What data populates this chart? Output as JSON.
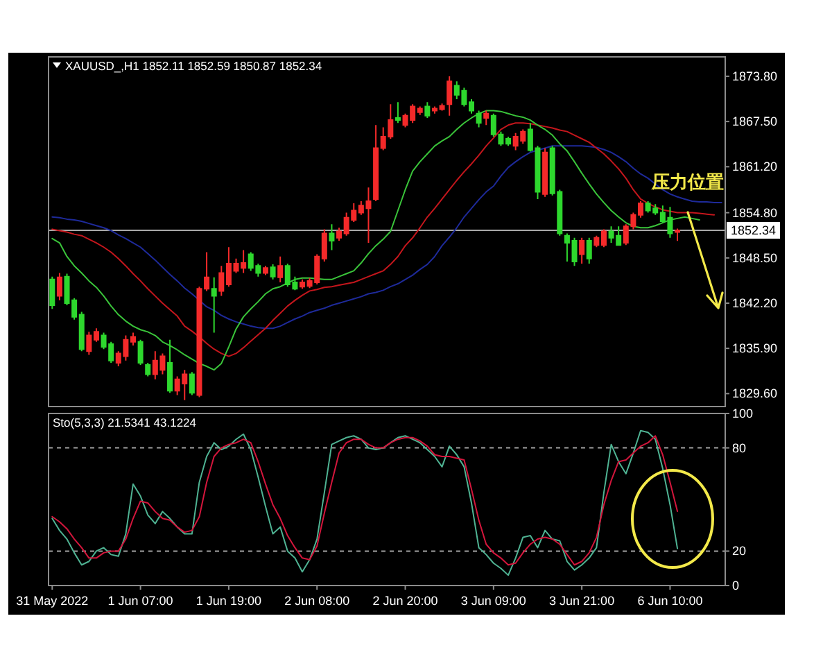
{
  "chart_data": [
    {
      "type": "candlestick",
      "title": "XAUUSD_,H1 1852.11 1852.59 1850.87 1852.34",
      "categories": [
        null,
        null,
        null,
        null,
        null,
        null,
        null,
        null,
        null,
        null,
        null,
        null,
        null,
        null,
        null,
        null,
        null,
        null,
        null,
        null,
        null,
        null,
        null,
        null,
        null,
        null,
        null,
        null,
        null,
        null,
        null,
        null,
        null,
        null,
        null,
        null,
        null,
        null,
        null,
        null,
        null,
        null,
        null,
        null,
        null,
        null,
        null,
        null,
        null,
        null,
        null,
        null,
        null,
        null,
        null,
        null,
        null,
        null,
        null,
        null,
        null,
        null,
        null,
        null,
        null,
        null,
        null,
        null,
        null,
        null,
        null,
        null,
        null,
        null,
        null,
        null,
        null,
        null,
        null,
        null,
        null,
        null,
        null,
        null,
        null,
        null,
        null,
        null,
        null,
        null,
        null,
        null
      ],
      "ohlc": [
        [
          1845.5,
          1845.9,
          1841.4,
          1841.9
        ],
        [
          1843.2,
          1846.4,
          1842.6,
          1845.8
        ],
        [
          1845.9,
          1846.3,
          1841.9,
          1842.2
        ],
        [
          1842.6,
          1842.9,
          1839.9,
          1840.3
        ],
        [
          1840.6,
          1841.0,
          1835.5,
          1835.8
        ],
        [
          1835.5,
          1838.2,
          1835.0,
          1837.7
        ],
        [
          1837.1,
          1838.7,
          1836.8,
          1838.2
        ],
        [
          1837.7,
          1838.1,
          1835.8,
          1836.1
        ],
        [
          1836.5,
          1836.8,
          1833.9,
          1834.2
        ],
        [
          1833.9,
          1835.5,
          1833.4,
          1835.2
        ],
        [
          1834.8,
          1837.7,
          1834.2,
          1837.1
        ],
        [
          1836.8,
          1838.1,
          1836.3,
          1837.5
        ],
        [
          1836.8,
          1837.1,
          1833.6,
          1833.9
        ],
        [
          1833.6,
          1833.9,
          1832.0,
          1832.3
        ],
        [
          1832.3,
          1835.5,
          1831.6,
          1834.2
        ],
        [
          1832.9,
          1835.2,
          1832.3,
          1834.8
        ],
        [
          1833.9,
          1837.1,
          1829.7,
          1830.0
        ],
        [
          1830.0,
          1832.0,
          1829.4,
          1831.6
        ],
        [
          1831.0,
          1832.9,
          1828.7,
          1832.3
        ],
        [
          1832.3,
          1832.6,
          1829.4,
          1829.7
        ],
        [
          1829.4,
          1844.5,
          1829.1,
          1844.2
        ],
        [
          1844.2,
          1849.3,
          1843.9,
          1845.8
        ],
        [
          1844.2,
          1845.8,
          1838.1,
          1843.2
        ],
        [
          1843.9,
          1847.4,
          1843.2,
          1846.4
        ],
        [
          1844.8,
          1850.0,
          1844.5,
          1847.7
        ],
        [
          1846.7,
          1848.4,
          1846.4,
          1847.7
        ],
        [
          1847.1,
          1849.6,
          1846.4,
          1847.8
        ],
        [
          1849.0,
          1849.3,
          1846.7,
          1847.1
        ],
        [
          1847.4,
          1847.7,
          1845.9,
          1846.4
        ],
        [
          1846.4,
          1847.4,
          1846.1,
          1847.1
        ],
        [
          1847.2,
          1847.6,
          1845.5,
          1845.9
        ],
        [
          1845.8,
          1848.7,
          1845.1,
          1847.4
        ],
        [
          1847.4,
          1847.7,
          1844.5,
          1844.8
        ],
        [
          1845.1,
          1845.9,
          1844.0,
          1844.2
        ],
        [
          1844.5,
          1845.5,
          1844.2,
          1845.1
        ],
        [
          1844.6,
          1845.7,
          1844.3,
          1845.3
        ],
        [
          1845.1,
          1849.0,
          1844.8,
          1848.7
        ],
        [
          1848.4,
          1852.5,
          1848.0,
          1851.9
        ],
        [
          1851.9,
          1853.2,
          1849.6,
          1850.9
        ],
        [
          1851.3,
          1852.7,
          1850.9,
          1852.2
        ],
        [
          1851.9,
          1854.8,
          1851.6,
          1854.1
        ],
        [
          1853.8,
          1856.1,
          1853.5,
          1855.1
        ],
        [
          1854.8,
          1856.4,
          1854.5,
          1855.8
        ],
        [
          1855.4,
          1858.3,
          1850.6,
          1856.4
        ],
        [
          1856.7,
          1867.0,
          1856.4,
          1863.8
        ],
        [
          1863.8,
          1866.7,
          1863.5,
          1865.4
        ],
        [
          1865.4,
          1869.9,
          1865.1,
          1867.7
        ],
        [
          1868.0,
          1870.2,
          1867.3,
          1867.7
        ],
        [
          1867.0,
          1868.6,
          1866.7,
          1868.3
        ],
        [
          1867.7,
          1869.9,
          1867.3,
          1869.6
        ],
        [
          1868.8,
          1869.6,
          1868.4,
          1869.3
        ],
        [
          1869.6,
          1870.2,
          1868.0,
          1868.3
        ],
        [
          1869.0,
          1869.6,
          1868.6,
          1869.3
        ],
        [
          1869.2,
          1870.0,
          1869.0,
          1869.7
        ],
        [
          1869.9,
          1873.8,
          1868.3,
          1873.1
        ],
        [
          1872.5,
          1873.1,
          1870.6,
          1871.2
        ],
        [
          1871.8,
          1872.2,
          1869.6,
          1869.9
        ],
        [
          1870.2,
          1870.6,
          1868.6,
          1869.0
        ],
        [
          1868.6,
          1869.0,
          1866.7,
          1867.3
        ],
        [
          1868.0,
          1869.0,
          1867.0,
          1868.6
        ],
        [
          1868.3,
          1868.6,
          1865.4,
          1865.7
        ],
        [
          1865.7,
          1866.1,
          1864.1,
          1864.4
        ],
        [
          1865.1,
          1865.4,
          1864.1,
          1864.4
        ],
        [
          1864.1,
          1865.9,
          1863.5,
          1865.4
        ],
        [
          1864.8,
          1866.4,
          1864.4,
          1866.1
        ],
        [
          1866.4,
          1867.3,
          1863.3,
          1863.5
        ],
        [
          1863.8,
          1864.1,
          1856.7,
          1857.7
        ],
        [
          1857.4,
          1863.8,
          1857.0,
          1863.2
        ],
        [
          1863.8,
          1864.1,
          1857.2,
          1857.5
        ],
        [
          1857.7,
          1858.0,
          1851.6,
          1851.9
        ],
        [
          1851.6,
          1851.9,
          1848.0,
          1850.6
        ],
        [
          1850.9,
          1851.3,
          1847.4,
          1848.0
        ],
        [
          1849.0,
          1851.3,
          1847.7,
          1850.9
        ],
        [
          1850.9,
          1851.3,
          1847.7,
          1848.4
        ],
        [
          1850.3,
          1851.6,
          1850.0,
          1851.3
        ],
        [
          1850.3,
          1852.5,
          1850.0,
          1852.2
        ],
        [
          1852.2,
          1852.9,
          1850.6,
          1851.3
        ],
        [
          1851.6,
          1852.9,
          1850.2,
          1850.3
        ],
        [
          1850.6,
          1853.2,
          1850.3,
          1852.9
        ],
        [
          1852.9,
          1854.8,
          1852.5,
          1854.5
        ],
        [
          1854.5,
          1856.4,
          1854.1,
          1856.1
        ],
        [
          1856.1,
          1856.4,
          1854.8,
          1855.1
        ],
        [
          1855.4,
          1856.0,
          1854.5,
          1854.8
        ],
        [
          1854.8,
          1855.8,
          1853.4,
          1853.6
        ],
        [
          1854.1,
          1855.6,
          1851.3,
          1851.9
        ],
        [
          1852.11,
          1852.59,
          1850.87,
          1852.34
        ],
        null,
        null,
        null,
        null,
        null,
        null
      ],
      "colors": [
        "#2ed82e",
        "#f42a2a",
        "#2ed82e",
        "#2ed82e",
        "#2ed82e",
        "#f42a2a",
        "#f42a2a",
        "#2ed82e",
        "#2ed82e",
        "#f42a2a",
        "#f42a2a",
        "#f42a2a",
        "#2ed82e",
        "#2ed82e",
        "#f42a2a",
        "#f42a2a",
        "#2ed82e",
        "#f42a2a",
        "#f42a2a",
        "#2ed82e",
        "#f42a2a",
        "#f42a2a",
        "#2ed82e",
        "#f42a2a",
        "#f42a2a",
        "#f42a2a",
        "#f42a2a",
        "#2ed82e",
        "#2ed82e",
        "#f42a2a",
        "#2ed82e",
        "#f42a2a",
        "#2ed82e",
        "#2ed82e",
        "#f42a2a",
        "#f42a2a",
        "#f42a2a",
        "#f42a2a",
        "#2ed82e",
        "#f42a2a",
        "#f42a2a",
        "#f42a2a",
        "#f42a2a",
        "#f42a2a",
        "#f42a2a",
        "#f42a2a",
        "#f42a2a",
        "#2ed82e",
        "#f42a2a",
        "#f42a2a",
        "#f42a2a",
        "#2ed82e",
        "#f42a2a",
        "#f42a2a",
        "#f42a2a",
        "#2ed82e",
        "#2ed82e",
        "#2ed82e",
        "#2ed82e",
        "#f42a2a",
        "#2ed82e",
        "#2ed82e",
        "#2ed82e",
        "#f42a2a",
        "#f42a2a",
        "#2ed82e",
        "#2ed82e",
        "#f42a2a",
        "#2ed82e",
        "#2ed82e",
        "#2ed82e",
        "#2ed82e",
        "#f42a2a",
        "#2ed82e",
        "#f42a2a",
        "#f42a2a",
        "#2ed82e",
        "#2ed82e",
        "#f42a2a",
        "#f42a2a",
        "#f42a2a",
        "#2ed82e",
        "#2ed82e",
        "#2ed82e",
        "#2ed82e",
        "#f42a2a",
        null,
        null,
        null,
        null,
        null,
        null
      ],
      "series": [
        {
          "type": "line",
          "color": "#1e2a9a",
          "values": [
            1854.2,
            1854.1,
            1853.9,
            1853.8,
            1853.6,
            1853.3,
            1853.0,
            1852.7,
            1852.3,
            1851.7,
            1851.2,
            1850.6,
            1850.0,
            1849.1,
            1848.2,
            1847.2,
            1846.2,
            1845.3,
            1844.3,
            1843.5,
            1842.6,
            1841.7,
            1841.2,
            1840.5,
            1840.0,
            1839.6,
            1839.3,
            1839.0,
            1838.8,
            1838.7,
            1838.7,
            1839.0,
            1839.5,
            1840.0,
            1840.4,
            1840.9,
            1841.2,
            1841.5,
            1841.9,
            1842.2,
            1842.5,
            1842.8,
            1843.1,
            1843.5,
            1843.7,
            1844.0,
            1844.5,
            1844.9,
            1845.5,
            1846.1,
            1846.9,
            1847.6,
            1848.7,
            1850.2,
            1851.4,
            1852.7,
            1854.2,
            1855.4,
            1856.6,
            1857.7,
            1858.5,
            1859.9,
            1861.1,
            1861.9,
            1862.6,
            1863.2,
            1863.5,
            1863.8,
            1864.1,
            1864.1,
            1864.1,
            1864.1,
            1864.1,
            1864.0,
            1863.9,
            1863.6,
            1863.2,
            1862.6,
            1861.9,
            1861.0,
            1860.2,
            1859.6,
            1858.8,
            1858.0,
            1857.4,
            1857.0,
            1856.7,
            1856.4,
            1856.3,
            1856.3,
            1856.2,
            1856.2
          ]
        },
        {
          "type": "line",
          "color": "#c4161c",
          "values": [
            1852.5,
            1852.3,
            1852.1,
            1851.8,
            1851.6,
            1851.1,
            1850.6,
            1850.0,
            1849.3,
            1848.4,
            1847.4,
            1846.3,
            1845.3,
            1844.2,
            1843.2,
            1842.2,
            1841.3,
            1840.4,
            1839.0,
            1838.3,
            1837.5,
            1836.6,
            1835.8,
            1835.2,
            1834.8,
            1835.2,
            1836.0,
            1836.9,
            1837.8,
            1838.7,
            1839.8,
            1840.8,
            1841.8,
            1842.6,
            1843.3,
            1843.9,
            1844.1,
            1844.4,
            1844.5,
            1844.7,
            1844.9,
            1845.1,
            1845.5,
            1845.9,
            1846.3,
            1846.7,
            1847.6,
            1848.7,
            1850.2,
            1851.3,
            1852.7,
            1854.2,
            1855.4,
            1856.7,
            1858.0,
            1859.3,
            1860.5,
            1861.6,
            1862.8,
            1864.1,
            1865.2,
            1866.4,
            1867.0,
            1867.3,
            1867.3,
            1867.2,
            1867.0,
            1866.8,
            1866.6,
            1866.3,
            1866.1,
            1865.6,
            1865.1,
            1864.6,
            1863.8,
            1863.0,
            1862.0,
            1860.9,
            1859.6,
            1858.0,
            1856.7,
            1856.1,
            1855.6,
            1855.2,
            1855.0,
            1854.8,
            1854.8,
            1854.8,
            1854.7,
            1854.6,
            1854.5,
            null
          ]
        },
        {
          "type": "line",
          "color": "#3ac43a",
          "values": [
            1851.2,
            1850.6,
            1848.7,
            1847.4,
            1846.4,
            1845.3,
            1844.4,
            1843.2,
            1841.8,
            1840.6,
            1839.7,
            1839.0,
            1838.5,
            1838.2,
            1837.7,
            1836.8,
            1836.3,
            1835.7,
            1835.0,
            1834.4,
            1833.8,
            1833.4,
            1832.9,
            1833.8,
            1836.1,
            1838.6,
            1840.3,
            1841.4,
            1842.4,
            1843.5,
            1844.2,
            1844.5,
            1845.0,
            1845.5,
            1845.7,
            1845.7,
            1845.6,
            1845.5,
            1845.5,
            1845.9,
            1846.3,
            1846.7,
            1847.8,
            1849.1,
            1850.2,
            1851.1,
            1852.2,
            1855.1,
            1858.0,
            1860.6,
            1861.9,
            1863.0,
            1864.1,
            1864.8,
            1865.4,
            1866.4,
            1867.3,
            1868.0,
            1868.6,
            1869.0,
            1869.0,
            1868.9,
            1868.6,
            1868.3,
            1868.1,
            1867.7,
            1867.0,
            1866.4,
            1865.6,
            1864.4,
            1863.4,
            1861.9,
            1860.3,
            1858.8,
            1857.4,
            1856.2,
            1855.1,
            1854.2,
            1853.4,
            1852.9,
            1852.7,
            1852.7,
            1853.0,
            1853.4,
            1853.8,
            1854.0,
            1854.2,
            1854.0,
            1853.8,
            null,
            null,
            null
          ]
        }
      ],
      "ylim": [
        1827.8,
        1876.5
      ],
      "yticks": [
        {
          "value": 1873.8,
          "label": "1873.80"
        },
        {
          "value": 1867.5,
          "label": "1867.50"
        },
        {
          "value": 1861.2,
          "label": "1861.20"
        },
        {
          "value": 1854.8,
          "label": "1854.80"
        },
        {
          "value": 1848.5,
          "label": "1848.50"
        },
        {
          "value": 1842.2,
          "label": "1842.20"
        },
        {
          "value": 1835.9,
          "label": "1835.90"
        },
        {
          "value": 1829.6,
          "label": "1829.60"
        }
      ],
      "ref_lines": [
        {
          "axis": "y",
          "value": 1852.34,
          "label": "1852.34",
          "color": "#a8a8a8"
        }
      ],
      "annotations": [
        "压力位置"
      ]
    },
    {
      "type": "line",
      "title": "Sto(5,3,3) 21.5341 43.1224",
      "categories": [
        "31 May 2022",
        null,
        null,
        null,
        null,
        null,
        null,
        null,
        null,
        null,
        null,
        null,
        "1 Jun 07:00",
        null,
        null,
        null,
        null,
        null,
        null,
        null,
        null,
        null,
        null,
        null,
        "1 Jun 19:00",
        null,
        null,
        null,
        null,
        null,
        null,
        null,
        null,
        null,
        null,
        null,
        "2 Jun 08:00",
        null,
        null,
        null,
        null,
        null,
        null,
        null,
        null,
        null,
        null,
        null,
        "2 Jun 20:00",
        null,
        null,
        null,
        null,
        null,
        null,
        null,
        null,
        null,
        null,
        null,
        "3 Jun 09:00",
        null,
        null,
        null,
        null,
        null,
        null,
        null,
        null,
        null,
        null,
        null,
        "3 Jun 21:00",
        null,
        null,
        null,
        null,
        null,
        null,
        null,
        null,
        null,
        null,
        null,
        "6 Jun 10:00",
        null,
        null,
        null,
        null,
        null,
        null,
        null
      ],
      "series": [
        {
          "color": "#4fb393",
          "values": [
            39,
            32,
            27,
            19,
            12,
            14,
            20,
            22,
            18,
            17,
            30,
            59,
            52,
            41,
            36,
            43,
            39,
            34,
            30,
            30,
            60,
            75,
            83,
            79,
            81,
            85,
            88,
            79,
            63,
            46,
            30,
            34,
            20,
            16,
            8,
            15,
            27,
            54,
            82,
            84,
            86,
            87,
            85,
            80,
            79,
            80,
            83,
            86,
            87,
            85,
            83,
            79,
            75,
            69,
            81,
            76,
            69,
            48,
            22,
            18,
            13,
            10,
            6,
            16,
            28,
            29,
            22,
            32,
            27,
            26,
            14,
            9,
            12,
            16,
            22,
            54,
            82,
            72,
            65,
            77,
            90,
            89,
            85,
            68,
            47,
            21.5341,
            null,
            null,
            null,
            null,
            null,
            null
          ]
        },
        {
          "color": "#d4163c",
          "values": [
            40,
            37,
            33,
            27,
            22,
            16,
            16,
            19,
            20,
            20,
            27,
            39,
            49,
            48,
            43,
            39,
            38,
            34,
            31,
            32,
            40,
            60,
            75,
            80,
            82,
            83,
            85,
            83,
            72,
            59,
            47,
            39,
            29,
            22,
            16,
            15,
            23,
            42,
            60,
            77,
            83,
            85,
            85,
            82,
            80,
            80,
            83,
            85,
            86,
            86,
            84,
            81,
            76,
            75,
            75,
            74,
            73,
            56,
            38,
            24,
            19,
            16,
            12,
            13,
            19,
            24,
            27,
            28,
            27,
            24,
            18,
            12,
            14,
            19,
            28,
            47,
            61,
            72,
            73,
            77,
            81,
            83,
            87,
            76,
            60,
            43.1224,
            null,
            null,
            null,
            null,
            null,
            null
          ]
        }
      ],
      "ylim": [
        0,
        100
      ],
      "yticks": [
        0,
        20,
        80,
        100
      ],
      "ref_lines": [
        {
          "axis": "y",
          "value": 20,
          "color": "#a0a0a0",
          "line_style": "dashed"
        },
        {
          "axis": "y",
          "value": 80,
          "color": "#a0a0a0",
          "line_style": "dashed"
        }
      ]
    }
  ]
}
